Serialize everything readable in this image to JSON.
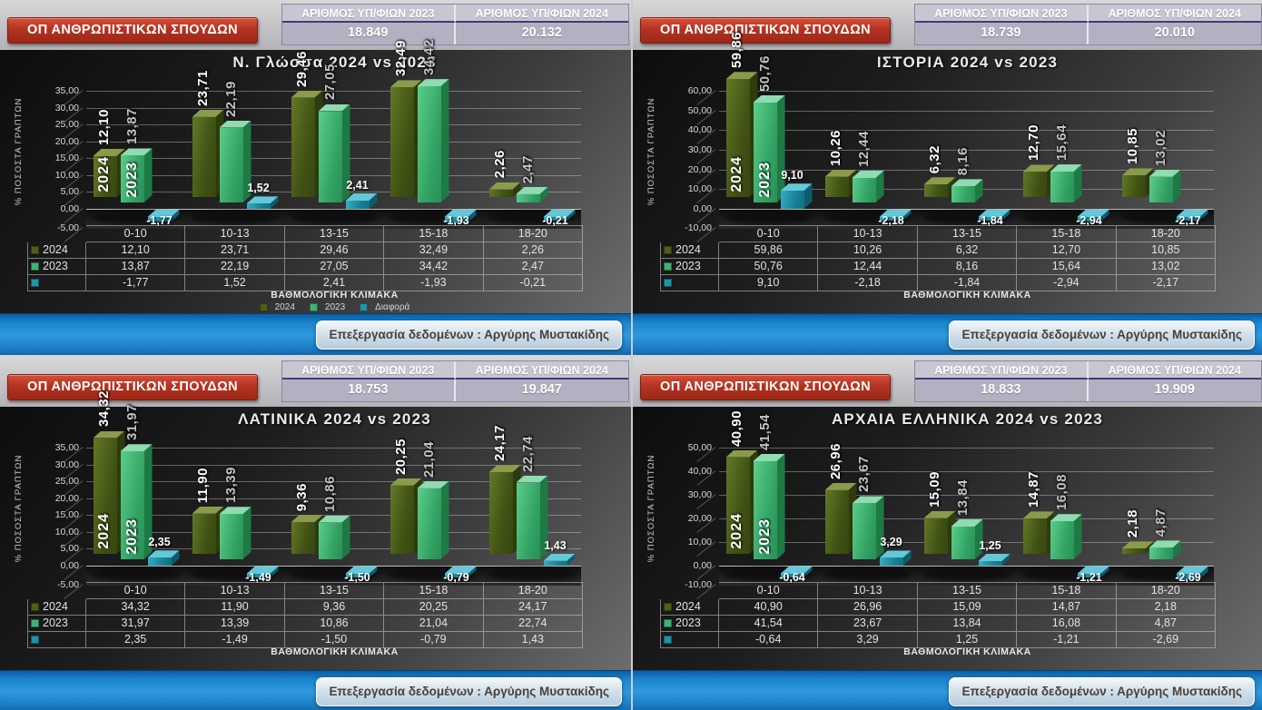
{
  "shared": {
    "badge_label": "ΟΠ ΑΝΘΡΩΠΙΣΤΙΚΩΝ ΣΠΟΥΔΩΝ",
    "stats_headers": [
      "ΑΡΙΘΜΟΣ ΥΠ/ΦΙΩΝ 2023",
      "ΑΡΙΘΜΟΣ ΥΠ/ΦΙΩΝ 2024"
    ],
    "xlabel": "ΒΑΘΜΟΛΟΓΙΚΗ ΚΛΙΜΑΚΑ",
    "ylabel": "% ΠΟΣΟΣΤΑ ΓΡΑΠΤΩΝ",
    "credit": "Επεξεργασία δεδομένων : Αργύρης Μυστακίδης",
    "legend_labels": [
      "2024",
      "2023",
      "Διαφορά"
    ],
    "colors": {
      "series_2024": "#4c5f1b",
      "series_2023": "#3eb374",
      "series_diff": "#1f93a8",
      "badge_red": "#b33322",
      "footer_blue": "#2e9ade",
      "stats_lavender": "#b4b0c2"
    }
  },
  "panels": [
    {
      "candidates_2023": "18.849",
      "candidates_2024": "20.132",
      "show_legend": true
    },
    {
      "candidates_2023": "18.739",
      "candidates_2024": "20.010",
      "show_legend": false
    },
    {
      "candidates_2023": "18.753",
      "candidates_2024": "19.847",
      "show_legend": false
    },
    {
      "candidates_2023": "18.833",
      "candidates_2024": "19.909",
      "show_legend": false
    }
  ],
  "chart_data": [
    {
      "type": "bar",
      "title": "Ν. Γλώσσα 2024 vs 2023",
      "categories": [
        "0-10",
        "10-13",
        "13-15",
        "15-18",
        "18-20"
      ],
      "series": [
        {
          "name": "2024",
          "values": [
            12.1,
            23.71,
            29.46,
            32.49,
            2.26
          ]
        },
        {
          "name": "2023",
          "values": [
            13.87,
            22.19,
            27.05,
            34.42,
            2.47
          ]
        },
        {
          "name": "Διαφορά",
          "values": [
            -1.77,
            1.52,
            2.41,
            -1.93,
            -0.21
          ]
        }
      ],
      "xlabel": "ΒΑΘΜΟΛΟΓΙΚΗ ΚΛΙΜΑΚΑ",
      "ylabel": "% ΠΟΣΟΣΤΑ ΓΡΑΠΤΩΝ",
      "ylim": [
        -5,
        35
      ],
      "ytick_step": 5,
      "grid": true,
      "legend_position": "bottom"
    },
    {
      "type": "bar",
      "title": "ΙΣΤΟΡΙΑ 2024 vs 2023",
      "categories": [
        "0-10",
        "10-13",
        "13-15",
        "15-18",
        "18-20"
      ],
      "series": [
        {
          "name": "2024",
          "values": [
            59.86,
            10.26,
            6.32,
            12.7,
            10.85
          ]
        },
        {
          "name": "2023",
          "values": [
            50.76,
            12.44,
            8.16,
            15.64,
            13.02
          ]
        },
        {
          "name": "Διαφορά",
          "values": [
            9.1,
            -2.18,
            -1.84,
            -2.94,
            -2.17
          ]
        }
      ],
      "xlabel": "ΒΑΘΜΟΛΟΓΙΚΗ ΚΛΙΜΑΚΑ",
      "ylabel": "% ΠΟΣΟΣΤΑ ΓΡΑΠΤΩΝ",
      "ylim": [
        -10,
        60
      ],
      "ytick_step": 10,
      "grid": true,
      "legend_position": "none"
    },
    {
      "type": "bar",
      "title": "ΛΑΤΙΝΙΚΑ 2024 vs 2023",
      "categories": [
        "0-10",
        "10-13",
        "13-15",
        "15-18",
        "18-20"
      ],
      "series": [
        {
          "name": "2024",
          "values": [
            34.32,
            11.9,
            9.36,
            20.25,
            24.17
          ]
        },
        {
          "name": "2023",
          "values": [
            31.97,
            13.39,
            10.86,
            21.04,
            22.74
          ]
        },
        {
          "name": "Διαφορά",
          "values": [
            2.35,
            -1.49,
            -1.5,
            -0.79,
            1.43
          ]
        }
      ],
      "xlabel": "ΒΑΘΜΟΛΟΓΙΚΗ ΚΛΙΜΑΚΑ",
      "ylabel": "% ΠΟΣΟΣΤΑ ΓΡΑΠΤΩΝ",
      "ylim": [
        -5,
        35
      ],
      "ytick_step": 5,
      "grid": true,
      "legend_position": "none"
    },
    {
      "type": "bar",
      "title": "ΑΡΧΑΙΑ ΕΛΛΗΝΙΚΑ 2024 vs 2023",
      "categories": [
        "0-10",
        "10-13",
        "13-15",
        "15-18",
        "18-20"
      ],
      "series": [
        {
          "name": "2024",
          "values": [
            40.9,
            26.96,
            15.09,
            14.87,
            2.18
          ]
        },
        {
          "name": "2023",
          "values": [
            41.54,
            23.67,
            13.84,
            16.08,
            4.87
          ]
        },
        {
          "name": "Διαφορά",
          "values": [
            -0.64,
            3.29,
            1.25,
            -1.21,
            -2.69
          ]
        }
      ],
      "xlabel": "ΒΑΘΜΟΛΟΓΙΚΗ ΚΛΙΜΑΚΑ",
      "ylabel": "% ΠΟΣΟΣΤΑ ΓΡΑΠΤΩΝ",
      "ylim": [
        -10,
        50
      ],
      "ytick_step": 10,
      "grid": true,
      "legend_position": "none"
    }
  ]
}
